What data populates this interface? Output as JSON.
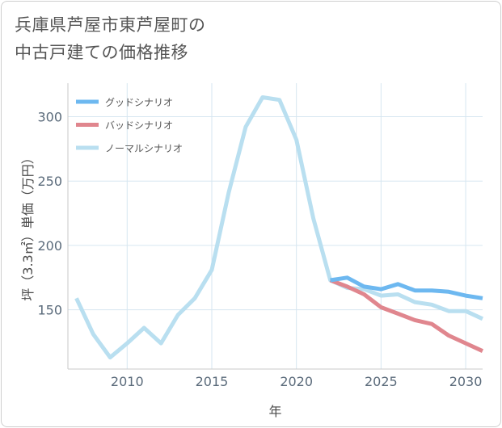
{
  "title_lines": [
    "兵庫県芦屋市東芦屋町の",
    "中古戸建ての価格推移"
  ],
  "chart_data": {
    "type": "line",
    "title": "兵庫県芦屋市東芦屋町の中古戸建ての価格推移",
    "xlabel": "年",
    "ylabel": "坪（3.3㎡）単価（万円）",
    "xlim": [
      2006.5,
      2031
    ],
    "ylim": [
      104,
      326
    ],
    "x_ticks": [
      2010,
      2015,
      2020,
      2025,
      2030
    ],
    "y_ticks": [
      150,
      200,
      250,
      300
    ],
    "grid": true,
    "legend_position": "top-left",
    "series": [
      {
        "name": "グッドシナリオ",
        "color": "#6db8f0",
        "x": [
          2022,
          2023,
          2024,
          2025,
          2026,
          2027,
          2028,
          2029,
          2030,
          2031
        ],
        "y": [
          173,
          175,
          168,
          166,
          170,
          165,
          165,
          164,
          161,
          159
        ]
      },
      {
        "name": "バッドシナリオ",
        "color": "#e0868e",
        "x": [
          2022,
          2023,
          2024,
          2025,
          2026,
          2027,
          2028,
          2029,
          2030,
          2031
        ],
        "y": [
          173,
          168,
          162,
          152,
          147,
          142,
          139,
          130,
          124,
          118
        ]
      },
      {
        "name": "ノーマルシナリオ",
        "color": "#b9dff0",
        "x": [
          2007,
          2008,
          2009,
          2010,
          2011,
          2012,
          2013,
          2014,
          2015,
          2016,
          2017,
          2018,
          2019,
          2020,
          2021,
          2022,
          2023,
          2024,
          2025,
          2026,
          2027,
          2028,
          2029,
          2030,
          2031
        ],
        "y": [
          159,
          131,
          113,
          124,
          136,
          124,
          146,
          159,
          181,
          241,
          292,
          315,
          313,
          282,
          221,
          173,
          167,
          166,
          161,
          162,
          156,
          154,
          149,
          149,
          143
        ]
      }
    ]
  }
}
